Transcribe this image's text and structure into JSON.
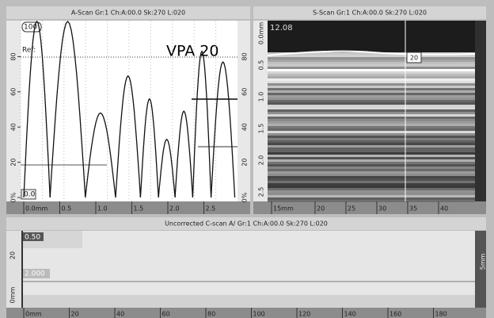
{
  "a_scan": {
    "title": "A-Scan Gr:1 Ch:A:00.0 Sk:270 L:020",
    "gain_label": "100",
    "ref_label": "Ref:",
    "annotation": "VPA 20",
    "cursor_value": "0.0",
    "y_ticks": [
      "80",
      "60",
      "40",
      "20",
      "0%"
    ],
    "y_ticks_right": [
      "0%",
      "20",
      "40",
      "60",
      "80"
    ],
    "x_ticks": [
      "0.0mm",
      "0.5",
      "1.0",
      "1.5",
      "2.0",
      "2.5"
    ],
    "peaks": [
      {
        "position": 0.09,
        "amplitude": 100
      },
      {
        "position": 0.64,
        "amplitude": 100
      },
      {
        "position": 1.07,
        "amplitude": 48
      },
      {
        "position": 1.48,
        "amplitude": 69
      },
      {
        "position": 1.76,
        "amplitude": 56
      },
      {
        "position": 1.98,
        "amplitude": 33
      },
      {
        "position": 2.22,
        "amplitude": 49
      },
      {
        "position": 2.47,
        "amplitude": 83
      },
      {
        "position": 2.73,
        "amplitude": 77
      }
    ]
  },
  "s_scan": {
    "title": "S-Scan Gr:1 Ch:A:00.0 Sk:270 L:020",
    "corner_value": "12.08",
    "cursor_label": "20",
    "depth_ticks": [
      "0.0mm",
      "0.5",
      "1.0",
      "1.5",
      "2.0",
      "2.5"
    ],
    "x_ticks": [
      "15mm",
      "20",
      "25",
      "30",
      "35",
      "40"
    ]
  },
  "c_scan": {
    "title": "Uncorrected C-scan A/ Gr:1 Ch:A:00.0 Sk:270 L:020",
    "top_value": "0.50",
    "cursor_value": "2.000",
    "left_ticks": [
      "20",
      "0mm"
    ],
    "right_label": "5mm",
    "x_ticks": [
      "0mm",
      "20",
      "40",
      "60",
      "80",
      "100",
      "120",
      "140",
      "160",
      "180"
    ]
  }
}
